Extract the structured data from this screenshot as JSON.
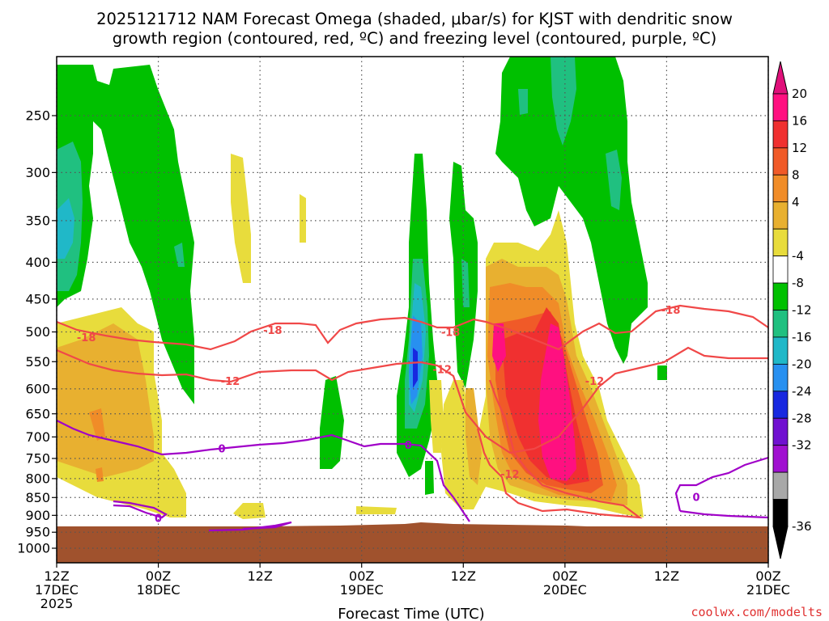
{
  "title": {
    "line1": "2025121712 NAM Forecast Omega (shaded, μbar/s) for KJST with dendritic snow",
    "line2": "growth region (contoured, red, ºC) and freezing level (contoured, purple, ºC)"
  },
  "credit": "coolwx.com/modelts",
  "chart_data": {
    "type": "heatmap",
    "title": "2025121712 NAM Forecast Omega (shaded, μbar/s) for KJST with dendritic snow growth region (contoured, red, ºC) and freezing level (contoured, purple, ºC)",
    "xlabel": "Forecast Time (UTC)",
    "ylabel": "",
    "x_range_hours": [
      0,
      84
    ],
    "y_range_hPa": [
      1000,
      200
    ],
    "y_scale": "log-pressure",
    "grid": true,
    "x_ticks": [
      {
        "hour": 0,
        "label": "12Z",
        "sub": "17DEC",
        "sub2": "2025"
      },
      {
        "hour": 12,
        "label": "00Z",
        "sub": "18DEC"
      },
      {
        "hour": 24,
        "label": "12Z",
        "sub": ""
      },
      {
        "hour": 36,
        "label": "00Z",
        "sub": "19DEC"
      },
      {
        "hour": 48,
        "label": "12Z",
        "sub": ""
      },
      {
        "hour": 60,
        "label": "00Z",
        "sub": "20DEC"
      },
      {
        "hour": 72,
        "label": "12Z",
        "sub": ""
      },
      {
        "hour": 84,
        "label": "00Z",
        "sub": "21DEC"
      }
    ],
    "y_ticks": [
      250,
      300,
      350,
      400,
      450,
      500,
      550,
      600,
      650,
      700,
      750,
      800,
      850,
      900,
      950,
      1000
    ],
    "colorbar": {
      "labels": [
        "20",
        "16",
        "12",
        "8",
        "4",
        "-4",
        "-8",
        "-12",
        "-16",
        "-20",
        "-24",
        "-28",
        "-32",
        "-36"
      ],
      "colors": [
        "#ff1080",
        "#f03030",
        "#f05a28",
        "#f08c28",
        "#e8b030",
        "#e8dc3c",
        "#ffffff",
        "#00c000",
        "#20c080",
        "#20b8c8",
        "#2890f0",
        "#1828e0",
        "#7010d0",
        "#a010d0",
        "#a8a8a8",
        "#000000"
      ],
      "arrow_top": "#e0107a",
      "arrow_bottom": "#000000"
    },
    "colors": {
      "dgz_contour": "#f04848",
      "freezing_contour": "#a000c8",
      "terrain": "#a0522d"
    },
    "contour_labels": [
      {
        "text": "-18",
        "color": "#f04848",
        "hour": 3.5,
        "hPa": 510
      },
      {
        "text": "-18",
        "color": "#f04848",
        "hour": 25.5,
        "hPa": 498
      },
      {
        "text": "-18",
        "color": "#f04848",
        "hour": 46.5,
        "hPa": 501
      },
      {
        "text": "-18",
        "color": "#f04848",
        "hour": 72.5,
        "hPa": 467
      },
      {
        "text": "-12",
        "color": "#f04848",
        "hour": 20.5,
        "hPa": 586
      },
      {
        "text": "-12",
        "color": "#f04848",
        "hour": 45.5,
        "hPa": 565
      },
      {
        "text": "-12",
        "color": "#f04848",
        "hour": 63.5,
        "hPa": 586
      },
      {
        "text": "-12",
        "color": "#f04848",
        "hour": 53.5,
        "hPa": 790
      },
      {
        "text": "0",
        "color": "#a000c8",
        "hour": 19.5,
        "hPa": 728
      },
      {
        "text": "0",
        "color": "#a000c8",
        "hour": 41.5,
        "hPa": 720
      },
      {
        "text": "0",
        "color": "#a000c8",
        "hour": 12.0,
        "hPa": 910
      },
      {
        "text": "0",
        "color": "#a000c8",
        "hour": 75.5,
        "hPa": 850
      }
    ]
  }
}
